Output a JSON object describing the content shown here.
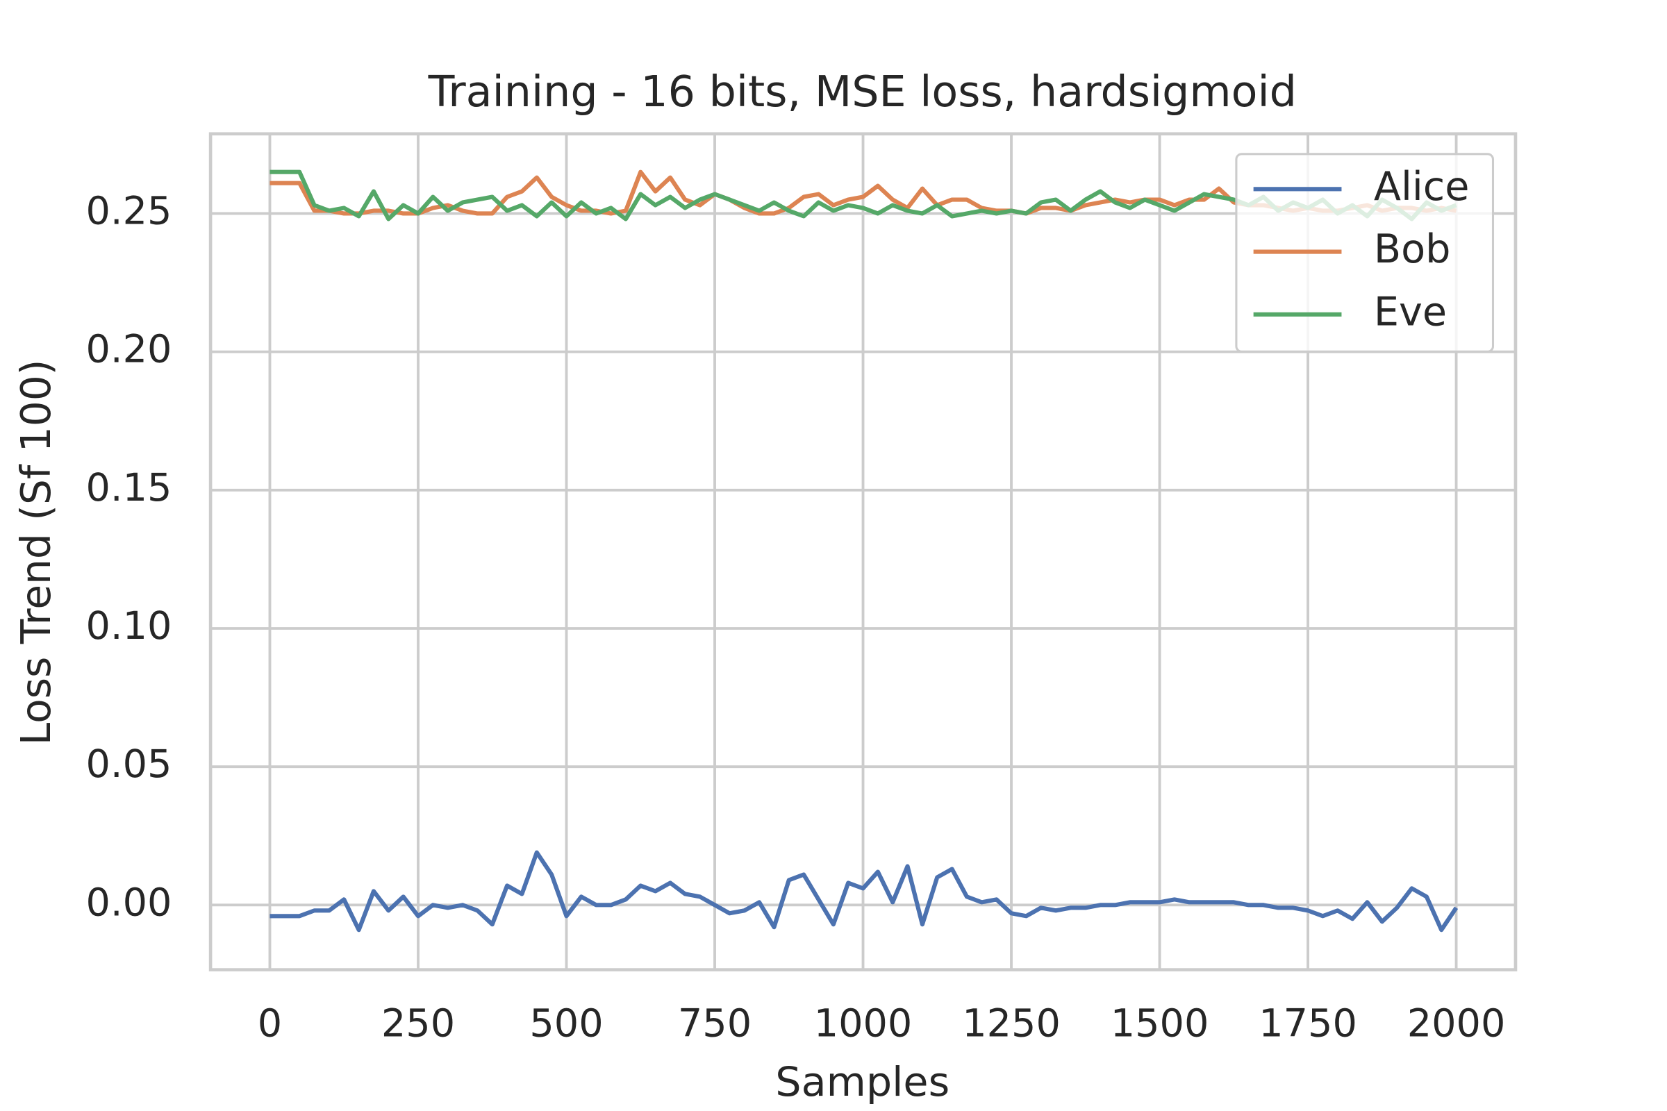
{
  "chart_data": {
    "type": "line",
    "title": "Training - 16 bits, MSE loss, hardsigmoid",
    "xlabel": "Samples",
    "ylabel": "Loss Trend (Sf 100)",
    "x": [
      0,
      25,
      50,
      75,
      100,
      125,
      150,
      175,
      200,
      225,
      250,
      275,
      300,
      325,
      350,
      375,
      400,
      425,
      450,
      475,
      500,
      525,
      550,
      575,
      600,
      625,
      650,
      675,
      700,
      725,
      750,
      775,
      800,
      825,
      850,
      875,
      900,
      925,
      950,
      975,
      1000,
      1025,
      1050,
      1075,
      1100,
      1125,
      1150,
      1175,
      1200,
      1225,
      1250,
      1275,
      1300,
      1325,
      1350,
      1375,
      1400,
      1425,
      1450,
      1475,
      1500,
      1525,
      1550,
      1575,
      1600,
      1625,
      1650,
      1675,
      1700,
      1725,
      1750,
      1775,
      1800,
      1825,
      1850,
      1875,
      1900,
      1925,
      1950,
      1975,
      2000
    ],
    "series": [
      {
        "name": "Alice",
        "color": "#4c72b0",
        "values": [
          -0.004,
          -0.004,
          -0.004,
          -0.002,
          -0.002,
          0.002,
          -0.009,
          0.005,
          -0.002,
          0.003,
          -0.004,
          0.0,
          -0.001,
          0.0,
          -0.002,
          -0.007,
          0.007,
          0.004,
          0.019,
          0.011,
          -0.004,
          0.003,
          0.0,
          0.0,
          0.002,
          0.007,
          0.005,
          0.008,
          0.004,
          0.003,
          0.0,
          -0.003,
          -0.002,
          0.001,
          -0.008,
          0.009,
          0.011,
          0.002,
          -0.007,
          0.008,
          0.006,
          0.012,
          0.001,
          0.014,
          -0.007,
          0.01,
          0.013,
          0.003,
          0.001,
          0.002,
          -0.003,
          -0.004,
          -0.001,
          -0.002,
          -0.001,
          -0.001,
          0.0,
          0.0,
          0.001,
          0.001,
          0.001,
          0.002,
          0.001,
          0.001,
          0.001,
          0.001,
          0.0,
          0.0,
          -0.001,
          -0.001,
          -0.002,
          -0.004,
          -0.002,
          -0.005,
          0.001,
          -0.006,
          -0.001,
          0.006,
          0.003,
          -0.009,
          -0.001
        ]
      },
      {
        "name": "Bob",
        "color": "#dd8452",
        "values": [
          0.261,
          0.261,
          0.261,
          0.251,
          0.251,
          0.25,
          0.25,
          0.251,
          0.251,
          0.25,
          0.25,
          0.252,
          0.253,
          0.251,
          0.25,
          0.25,
          0.256,
          0.258,
          0.263,
          0.256,
          0.253,
          0.251,
          0.251,
          0.25,
          0.251,
          0.265,
          0.258,
          0.263,
          0.255,
          0.253,
          0.257,
          0.255,
          0.252,
          0.25,
          0.25,
          0.252,
          0.256,
          0.257,
          0.253,
          0.255,
          0.256,
          0.26,
          0.255,
          0.252,
          0.259,
          0.253,
          0.255,
          0.255,
          0.252,
          0.251,
          0.251,
          0.25,
          0.252,
          0.252,
          0.251,
          0.253,
          0.254,
          0.255,
          0.254,
          0.255,
          0.255,
          0.253,
          0.255,
          0.255,
          0.259,
          0.254,
          0.253,
          0.253,
          0.252,
          0.251,
          0.252,
          0.251,
          0.251,
          0.252,
          0.253,
          0.251,
          0.252,
          0.252,
          0.251,
          0.252,
          0.251
        ]
      },
      {
        "name": "Eve",
        "color": "#55a868",
        "values": [
          0.265,
          0.265,
          0.265,
          0.253,
          0.251,
          0.252,
          0.249,
          0.258,
          0.248,
          0.253,
          0.25,
          0.256,
          0.251,
          0.254,
          0.255,
          0.256,
          0.251,
          0.253,
          0.249,
          0.254,
          0.249,
          0.254,
          0.25,
          0.252,
          0.248,
          0.257,
          0.253,
          0.256,
          0.252,
          0.255,
          0.257,
          0.255,
          0.253,
          0.251,
          0.254,
          0.251,
          0.249,
          0.254,
          0.251,
          0.253,
          0.252,
          0.25,
          0.253,
          0.251,
          0.25,
          0.253,
          0.249,
          0.25,
          0.251,
          0.25,
          0.251,
          0.25,
          0.254,
          0.255,
          0.251,
          0.255,
          0.258,
          0.254,
          0.252,
          0.255,
          0.253,
          0.251,
          0.254,
          0.257,
          0.256,
          0.255,
          0.253,
          0.256,
          0.251,
          0.254,
          0.252,
          0.255,
          0.25,
          0.253,
          0.249,
          0.255,
          0.252,
          0.248,
          0.254,
          0.251,
          0.253
        ]
      }
    ],
    "xlim": [
      -100,
      2100
    ],
    "ylim": [
      -0.0234,
      0.2788
    ],
    "xticks": [
      0,
      250,
      500,
      750,
      1000,
      1250,
      1500,
      1750,
      2000
    ],
    "yticks": [
      {
        "value": 0,
        "label": "0.00"
      },
      {
        "value": 0.05,
        "label": "0.05"
      },
      {
        "value": 0.1,
        "label": "0.10"
      },
      0.15,
      {
        "value": 0.2,
        "label": "0.20"
      },
      0.25
    ],
    "grid": true,
    "legend": "upper right"
  }
}
